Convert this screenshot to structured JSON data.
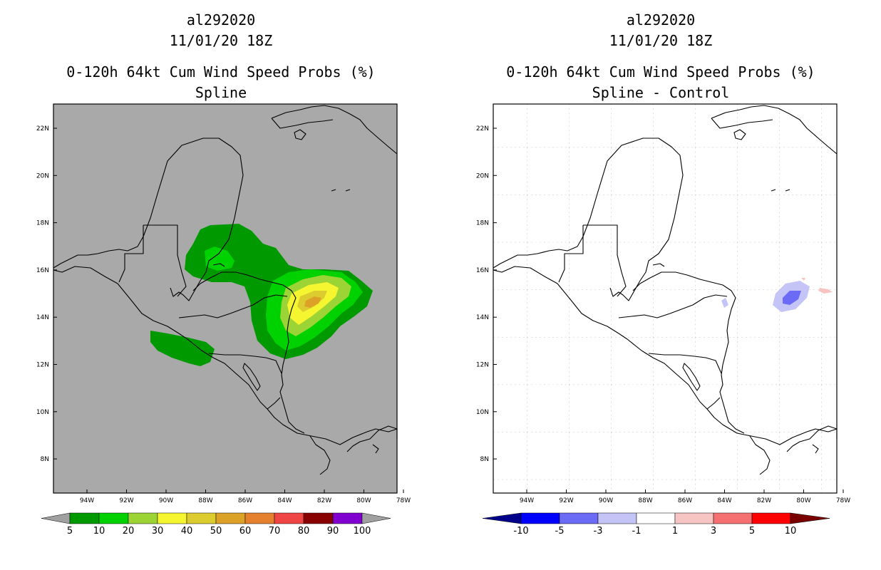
{
  "left": {
    "title": {
      "storm_id": "al292020",
      "datetime": "11/01/20 18Z",
      "product": "0-120h 64kt Cum Wind Speed Probs (%)",
      "subtitle": "Spline"
    },
    "background_color": "#a9a9a9",
    "colorbar": {
      "ticks": [
        "5",
        "10",
        "20",
        "30",
        "40",
        "50",
        "60",
        "70",
        "80",
        "90",
        "100"
      ],
      "colors": [
        "#009a00",
        "#00d100",
        "#9cd436",
        "#f5f530",
        "#ddcc30",
        "#dca228",
        "#e5802e",
        "#f04545",
        "#880000",
        "#8000d0"
      ],
      "end_color": "#a0a0a0"
    }
  },
  "right": {
    "title": {
      "storm_id": "al292020",
      "datetime": "11/01/20 18Z",
      "product": "0-120h 64kt Cum Wind Speed Probs (%)",
      "subtitle": "Spline - Control"
    },
    "background_color": "#ffffff",
    "colorbar": {
      "ticks": [
        "-10",
        "-5",
        "-3",
        "-1",
        "1",
        "3",
        "5",
        "10"
      ],
      "colors": [
        "#0000ff",
        "#6b6bf5",
        "#c4c4f7",
        "#ffffff",
        "#f7c4c4",
        "#f57070",
        "#ff0000"
      ],
      "end_low": "#00008b",
      "end_high": "#7a0000"
    }
  },
  "axes": {
    "lat_labels": [
      "22N",
      "20N",
      "18N",
      "16N",
      "14N",
      "12N",
      "10N",
      "8N"
    ],
    "lon_labels": [
      "94W",
      "92W",
      "90W",
      "88W",
      "86W",
      "84W",
      "82W",
      "80W",
      "78W"
    ]
  }
}
